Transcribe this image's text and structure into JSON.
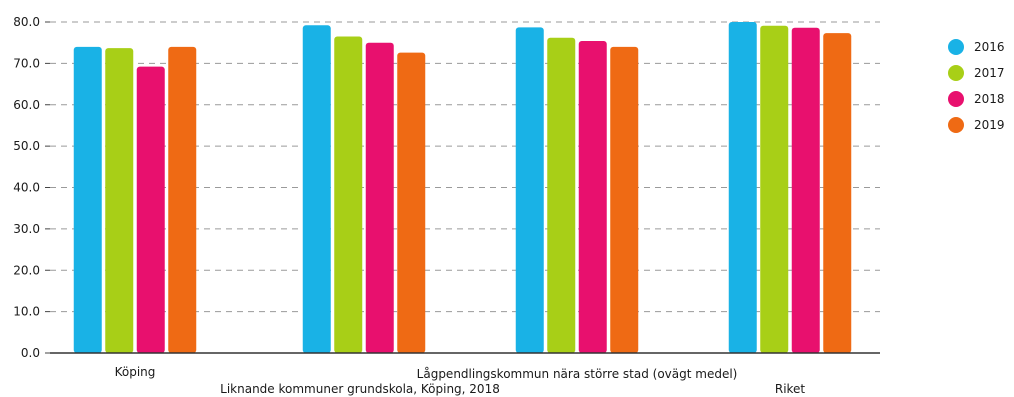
{
  "chart_data": {
    "type": "bar",
    "categories": [
      "Köping",
      "Liknande kommuner grundskola, Köping, 2018",
      "Lågpendlingskommun nära större stad (ovägt medel)",
      "Riket"
    ],
    "series": [
      {
        "name": "2016",
        "color": "#19b2e6",
        "values": [
          74.0,
          79.2,
          78.7,
          80.0
        ]
      },
      {
        "name": "2017",
        "color": "#a8cf17",
        "values": [
          73.7,
          76.5,
          76.2,
          79.1
        ]
      },
      {
        "name": "2018",
        "color": "#e8106e",
        "values": [
          69.2,
          75.0,
          75.4,
          78.6
        ]
      },
      {
        "name": "2019",
        "color": "#ef6a14",
        "values": [
          74.0,
          72.6,
          74.0,
          77.3
        ]
      }
    ],
    "yticks": [
      "0.0",
      "10.0",
      "20.0",
      "30.0",
      "40.0",
      "50.0",
      "60.0",
      "70.0",
      "80.0"
    ],
    "ylim": [
      0,
      80
    ],
    "grid": "dashed horizontal",
    "legend": "right"
  }
}
